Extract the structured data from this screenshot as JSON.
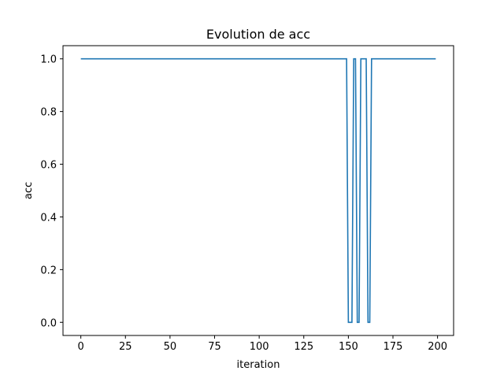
{
  "chart_data": {
    "type": "line",
    "title": "Evolution de acc",
    "xlabel": "iteration",
    "ylabel": "acc",
    "xlim": [
      -10,
      209
    ],
    "ylim": [
      -0.05,
      1.05
    ],
    "xticks": [
      0,
      25,
      50,
      75,
      100,
      125,
      150,
      175,
      200
    ],
    "yticks": [
      0.0,
      0.2,
      0.4,
      0.6,
      0.8,
      1.0
    ],
    "xtick_labels": [
      "0",
      "25",
      "50",
      "75",
      "100",
      "125",
      "150",
      "175",
      "200"
    ],
    "ytick_labels": [
      "0.0",
      "0.2",
      "0.4",
      "0.6",
      "0.8",
      "1.0"
    ],
    "grid": false,
    "series": [
      {
        "color": "#1f77b4",
        "x": [
          0,
          149,
          150,
          152,
          153,
          154,
          155,
          156,
          157,
          160,
          161,
          162,
          163,
          199
        ],
        "y": [
          1,
          1,
          0,
          0,
          1,
          1,
          0,
          0,
          1,
          1,
          0,
          0,
          1,
          1
        ]
      }
    ]
  }
}
